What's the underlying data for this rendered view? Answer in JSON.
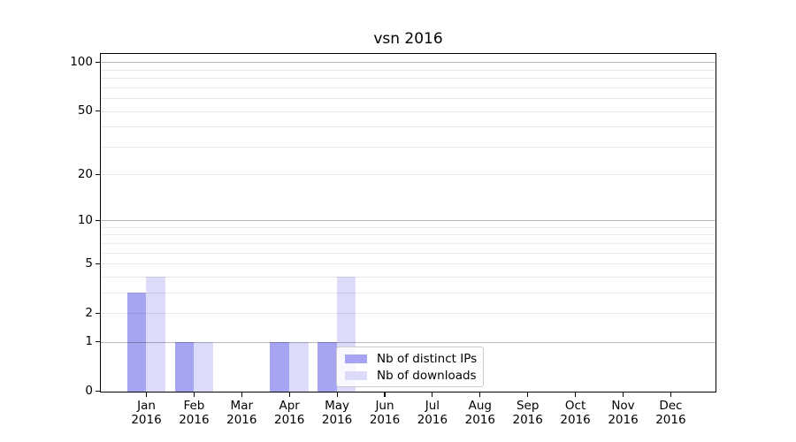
{
  "chart_data": {
    "type": "bar",
    "title": "vsn 2016",
    "x_year": "2016",
    "categories": [
      "Jan",
      "Feb",
      "Mar",
      "Apr",
      "May",
      "Jun",
      "Jul",
      "Aug",
      "Sep",
      "Oct",
      "Nov",
      "Dec"
    ],
    "series": [
      {
        "name": "Nb of distinct IPs",
        "color": "#a5a5f2",
        "values": [
          3,
          1,
          0,
          1,
          1,
          0,
          0,
          0,
          0,
          0,
          0,
          0
        ]
      },
      {
        "name": "Nb of downloads",
        "color": "#dcdcfa",
        "values": [
          4,
          1,
          0,
          1,
          4,
          0,
          0,
          0,
          0,
          0,
          0,
          0
        ]
      }
    ],
    "y_axis": {
      "scale": "log1p",
      "ticks": [
        0,
        1,
        2,
        5,
        10,
        20,
        50,
        100
      ],
      "max": 113
    },
    "grid": {
      "major": [
        1,
        10,
        100
      ],
      "minor": [
        2,
        3,
        4,
        5,
        6,
        7,
        8,
        9,
        20,
        30,
        40,
        50,
        60,
        70,
        80,
        90
      ]
    },
    "legend_position": "lower center",
    "background_color": "#ffffff",
    "text_color": "#000000"
  }
}
